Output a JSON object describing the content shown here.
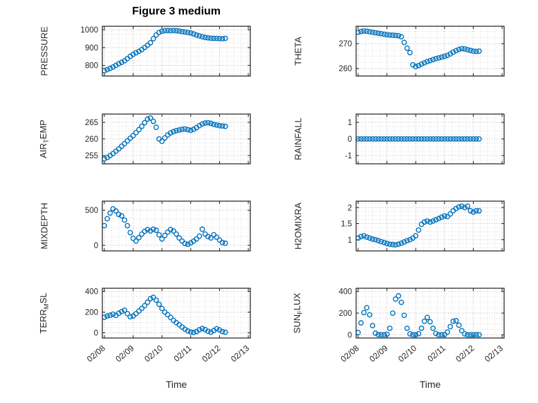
{
  "title": "Figure 3 medium",
  "xlabel": "Time",
  "colors": {
    "marker": "#0072BD",
    "axis": "#1c1c1c",
    "tick_text": "#262626",
    "grid_major": "#b2b2b2",
    "grid_minor": "#d9d9d9",
    "background": "#ffffff"
  },
  "chart_data": {
    "type": "scatter",
    "marker": "open-circle",
    "grid": "dotted, minor grid on",
    "x_label": "Time",
    "x_unit": "days since 02/08",
    "xlim": [
      -0.07,
      5.07
    ],
    "x_ticks": {
      "values": [
        0,
        1,
        2,
        3,
        4,
        5
      ],
      "labels": [
        "02/08",
        "02/09",
        "02/10",
        "02/11",
        "02/12",
        "02/13"
      ]
    },
    "x": [
      0,
      0.1,
      0.2,
      0.3,
      0.4,
      0.5,
      0.6,
      0.7,
      0.8,
      0.9,
      1,
      1.1,
      1.2,
      1.3,
      1.4,
      1.5,
      1.6,
      1.7,
      1.8,
      1.9,
      2,
      2.1,
      2.2,
      2.3,
      2.4,
      2.5,
      2.6,
      2.7,
      2.8,
      2.9,
      3,
      3.1,
      3.2,
      3.3,
      3.4,
      3.5,
      3.6,
      3.7,
      3.8,
      3.9,
      4,
      4.1,
      4.2
    ],
    "subplots": [
      {
        "name": "PRESSURE",
        "ylabel_parts": [
          {
            "t": "PRESSURE"
          }
        ],
        "ylim": [
          740,
          1020
        ],
        "yticks": [
          800,
          900,
          1000
        ],
        "y": [
          770,
          776,
          783,
          791,
          800,
          809,
          817,
          826,
          838,
          851,
          862,
          871,
          879,
          889,
          901,
          913,
          927,
          950,
          971,
          985,
          992,
          995,
          996,
          995,
          996,
          995,
          993,
          990,
          988,
          985,
          982,
          977,
          971,
          966,
          961,
          957,
          955,
          953,
          952,
          952,
          951,
          950,
          952
        ]
      },
      {
        "name": "THETA",
        "ylabel_parts": [
          {
            "t": "THETA"
          }
        ],
        "ylim": [
          257,
          277
        ],
        "yticks": [
          260,
          270
        ],
        "y": [
          274.6,
          274.9,
          275.1,
          275.0,
          274.8,
          274.6,
          274.4,
          274.2,
          274.0,
          273.8,
          273.6,
          273.5,
          273.4,
          273.3,
          273.2,
          272.8,
          270.5,
          268.2,
          266.4,
          261.5,
          260.8,
          261.2,
          261.8,
          262.3,
          262.8,
          263.2,
          263.6,
          264.0,
          264.3,
          264.6,
          264.9,
          265.3,
          265.9,
          266.6,
          267.2,
          267.7,
          268.0,
          267.9,
          267.6,
          267.3,
          267.0,
          266.9,
          267.0
        ]
      },
      {
        "name": "AIR_TEMP",
        "ylabel_parts": [
          {
            "t": "AIR"
          },
          {
            "t": "T",
            "sub": true
          },
          {
            "t": "EMP"
          }
        ],
        "ylim": [
          252.5,
          267.5
        ],
        "yticks": [
          255,
          260,
          265
        ],
        "y": [
          254.0,
          254.4,
          255.0,
          255.6,
          256.3,
          257.0,
          257.8,
          258.6,
          259.4,
          260.2,
          261.0,
          261.9,
          262.8,
          263.8,
          264.9,
          266.0,
          266.3,
          265.3,
          263.5,
          260.0,
          259.3,
          260.3,
          261.2,
          261.8,
          262.2,
          262.5,
          262.7,
          262.9,
          263.0,
          262.8,
          262.6,
          262.9,
          263.4,
          264.0,
          264.5,
          264.8,
          264.9,
          264.7,
          264.4,
          264.2,
          264.0,
          263.9,
          263.8
        ]
      },
      {
        "name": "RAINFALL",
        "ylabel_parts": [
          {
            "t": "RAINFALL"
          }
        ],
        "ylim": [
          -1.5,
          1.5
        ],
        "yticks": [
          -1,
          0,
          1
        ],
        "y": [
          0,
          0,
          0,
          0,
          0,
          0,
          0,
          0,
          0,
          0,
          0,
          0,
          0,
          0,
          0,
          0,
          0,
          0,
          0,
          0,
          0,
          0,
          0,
          0,
          0,
          0,
          0,
          0,
          0,
          0,
          0,
          0,
          0,
          0,
          0,
          0,
          0,
          0,
          0,
          0,
          0,
          0,
          0
        ]
      },
      {
        "name": "MIXDEPTH",
        "ylabel_parts": [
          {
            "t": "MIXDEPTH"
          }
        ],
        "ylim": [
          -80,
          630
        ],
        "yticks": [
          0,
          500
        ],
        "y": [
          280,
          380,
          460,
          520,
          490,
          440,
          420,
          360,
          280,
          180,
          100,
          60,
          110,
          160,
          200,
          225,
          205,
          230,
          215,
          150,
          90,
          140,
          190,
          225,
          205,
          160,
          105,
          60,
          25,
          15,
          35,
          60,
          90,
          130,
          230,
          160,
          125,
          105,
          150,
          115,
          75,
          40,
          30
        ]
      },
      {
        "name": "H2OMIXRA",
        "ylabel_parts": [
          {
            "t": "H2OMIXRA"
          }
        ],
        "ylim": [
          0.65,
          2.2
        ],
        "yticks": [
          1,
          1.5,
          2
        ],
        "y": [
          1.05,
          1.1,
          1.12,
          1.08,
          1.05,
          1.02,
          1.0,
          0.97,
          0.94,
          0.91,
          0.88,
          0.86,
          0.85,
          0.84,
          0.86,
          0.89,
          0.93,
          0.97,
          1.0,
          1.05,
          1.12,
          1.3,
          1.48,
          1.55,
          1.58,
          1.55,
          1.58,
          1.62,
          1.66,
          1.7,
          1.74,
          1.72,
          1.8,
          1.9,
          1.97,
          2.02,
          2.04,
          2.0,
          2.04,
          1.9,
          1.86,
          1.9,
          1.9
        ]
      },
      {
        "name": "TERR_MSL",
        "ylabel_parts": [
          {
            "t": "TERR"
          },
          {
            "t": "M",
            "sub": true
          },
          {
            "t": "SL"
          }
        ],
        "ylim": [
          -50,
          430
        ],
        "yticks": [
          0,
          200,
          400
        ],
        "y": [
          150,
          162,
          170,
          180,
          168,
          188,
          205,
          218,
          185,
          155,
          162,
          185,
          210,
          235,
          262,
          295,
          330,
          342,
          315,
          275,
          235,
          200,
          175,
          148,
          120,
          98,
          78,
          55,
          35,
          18,
          8,
          4,
          12,
          30,
          42,
          32,
          15,
          6,
          22,
          40,
          28,
          12,
          6
        ]
      },
      {
        "name": "SUN_FLUX",
        "ylabel_parts": [
          {
            "t": "SUN"
          },
          {
            "t": "F",
            "sub": true
          },
          {
            "t": "LUX"
          }
        ],
        "ylim": [
          -30,
          430
        ],
        "yticks": [
          0,
          200,
          400
        ],
        "y": [
          20,
          110,
          205,
          250,
          185,
          85,
          15,
          2,
          0,
          0,
          5,
          60,
          200,
          330,
          360,
          300,
          180,
          60,
          8,
          0,
          0,
          10,
          60,
          125,
          160,
          120,
          60,
          12,
          0,
          0,
          2,
          25,
          75,
          125,
          130,
          88,
          38,
          8,
          0,
          0,
          0,
          2,
          0
        ]
      }
    ]
  }
}
